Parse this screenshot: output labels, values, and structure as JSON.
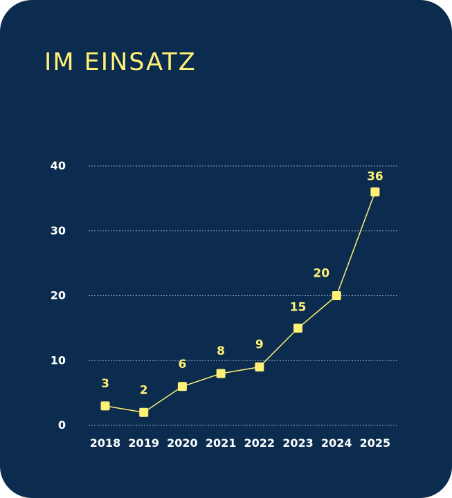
{
  "colors": {
    "background": "#0b2c4f",
    "accent": "#fff176",
    "text": "#ffffff"
  },
  "chart_data": {
    "type": "line",
    "title": "IM EINSATZ",
    "xlabel": "",
    "ylabel": "",
    "categories": [
      "2018",
      "2019",
      "2020",
      "2021",
      "2022",
      "2023",
      "2024",
      "2025"
    ],
    "values": [
      3,
      2,
      6,
      8,
      9,
      15,
      20,
      36
    ],
    "data_labels": [
      "3",
      "2",
      "6",
      "8",
      "9",
      "15",
      "20",
      "36"
    ],
    "yticks": [
      "0",
      "10",
      "20",
      "30",
      "40"
    ],
    "ylim": [
      0,
      40
    ],
    "grid": true,
    "legend": "none"
  }
}
